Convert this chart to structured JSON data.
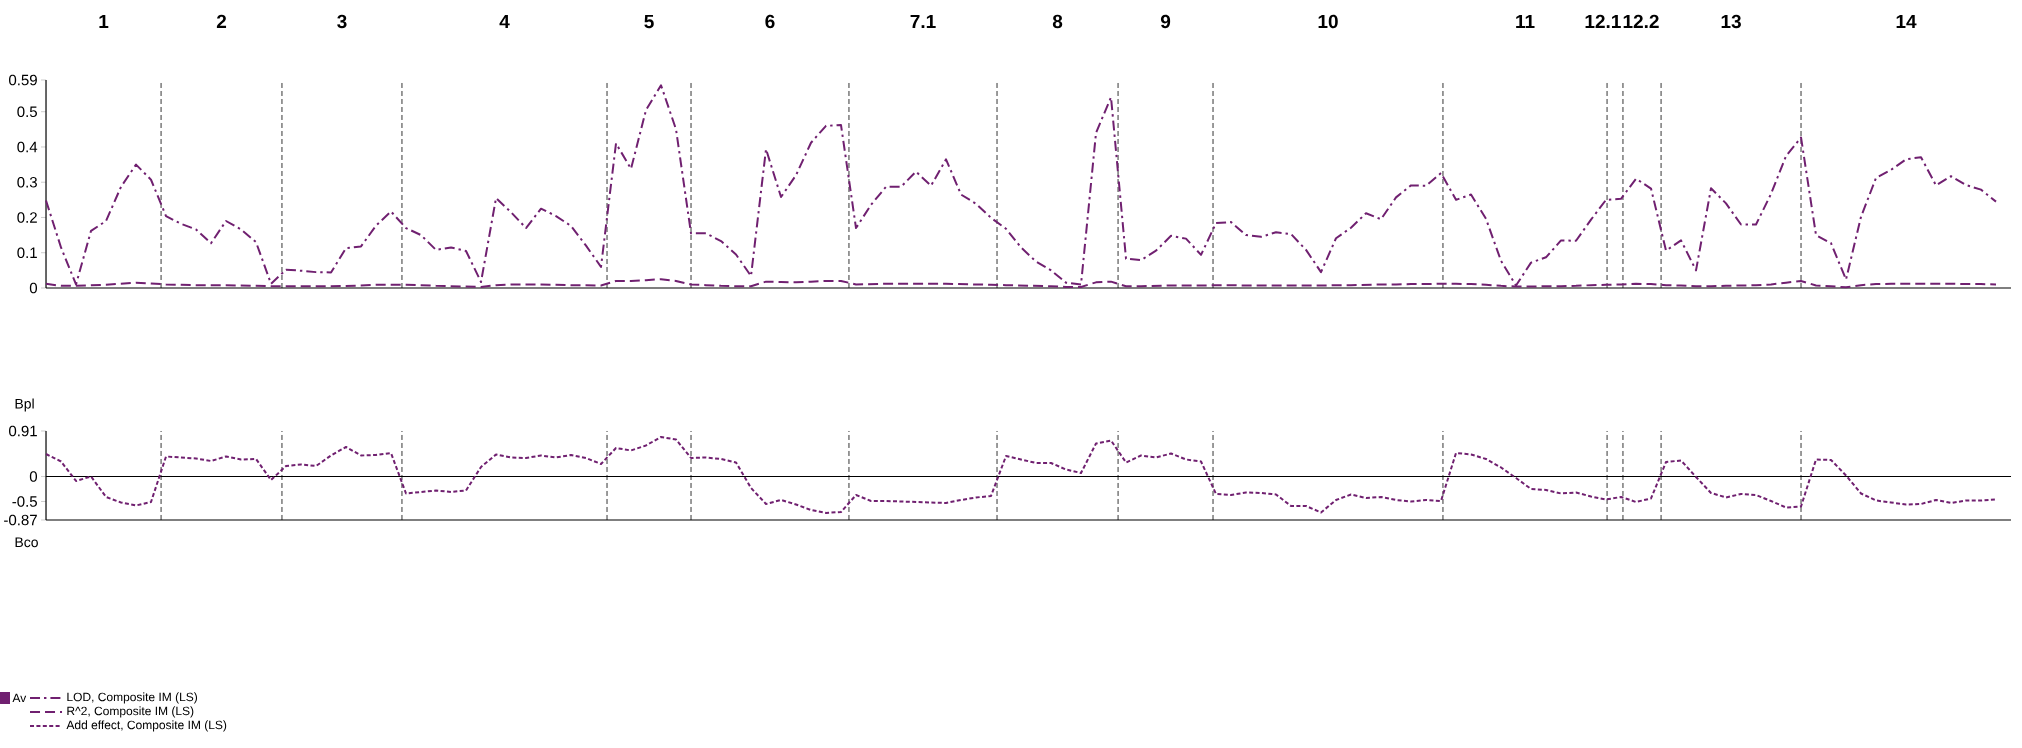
{
  "chart_data": [
    {
      "type": "line",
      "categories": [
        null,
        null,
        null,
        null,
        null,
        null,
        null,
        null,
        null,
        null,
        null,
        null,
        null,
        null,
        null,
        null,
        null,
        null,
        null,
        null,
        null,
        null,
        null,
        null,
        null,
        null,
        null,
        null,
        null,
        null,
        null,
        null,
        null,
        null,
        null,
        null,
        null,
        null,
        null,
        null,
        null,
        null,
        null,
        null,
        null,
        null,
        null,
        null,
        null,
        null,
        null,
        null,
        null,
        null,
        null,
        null,
        null,
        null,
        null,
        null,
        null,
        null,
        null,
        null,
        null,
        null,
        null,
        null,
        null,
        null,
        null,
        null,
        null,
        null,
        null,
        null,
        null,
        null,
        null,
        null,
        null,
        null,
        null,
        null,
        null,
        null,
        null,
        null,
        null,
        null,
        null,
        null,
        null,
        null,
        null,
        null,
        null,
        null,
        null,
        null,
        null,
        null,
        null,
        null,
        null,
        null,
        null,
        null,
        null,
        null,
        null,
        null,
        null,
        null,
        null,
        null,
        null,
        null,
        null,
        null,
        null,
        null,
        null,
        null,
        null,
        null,
        null,
        null,
        null,
        null,
        null
      ],
      "ylim": [
        0,
        0.59
      ],
      "yticks": [
        0,
        0.1,
        0.2,
        0.3,
        0.4,
        0.5,
        0.59
      ],
      "tick_labels": "y",
      "legend": "bottom left",
      "legend_title": "Av",
      "annotations": [
        "1",
        "2",
        "3",
        "4",
        "5",
        "6",
        "7.1",
        "8",
        "9",
        "10",
        "11",
        "12.1",
        "12.2",
        "13",
        "14",
        "Bpl"
      ],
      "series": [
        {
          "name": "LOD, Composite IM (LS)",
          "color": "#702070",
          "line_style": "dashdot",
          "values": [
            0.248,
            0.115,
            0.01,
            0.162,
            0.19,
            0.287,
            0.35,
            0.307,
            0.204,
            0.182,
            0.166,
            0.127,
            0.19,
            0.166,
            0.13,
            0.012,
            0.052,
            0.049,
            0.045,
            0.044,
            0.113,
            0.118,
            0.177,
            0.217,
            0.17,
            0.15,
            0.108,
            0.115,
            0.105,
            0.017,
            0.255,
            0.215,
            0.17,
            0.225,
            0.204,
            0.176,
            0.12,
            0.06,
            0.41,
            0.338,
            0.505,
            0.575,
            0.45,
            0.155,
            0.155,
            0.133,
            0.095,
            0.034,
            0.394,
            0.258,
            0.32,
            0.412,
            0.46,
            0.462,
            0.17,
            0.236,
            0.287,
            0.287,
            0.33,
            0.29,
            0.365,
            0.265,
            0.239,
            0.199,
            0.168,
            0.115,
            0.075,
            0.05,
            0.015,
            0.01,
            0.44,
            0.541,
            0.083,
            0.079,
            0.106,
            0.148,
            0.14,
            0.094,
            0.184,
            0.187,
            0.15,
            0.145,
            0.158,
            0.153,
            0.108,
            0.045,
            0.141,
            0.171,
            0.212,
            0.195,
            0.257,
            0.291,
            0.29,
            0.326,
            0.25,
            0.265,
            0.196,
            0.077,
            0.007,
            0.072,
            0.087,
            0.135,
            0.134,
            0.194,
            0.25,
            0.253,
            0.31,
            0.282,
            0.106,
            0.135,
            0.05,
            0.283,
            0.24,
            0.18,
            0.18,
            0.267,
            0.374,
            0.427,
            0.15,
            0.127,
            0.024,
            0.202,
            0.312,
            0.335,
            0.365,
            0.371,
            0.291,
            0.317,
            0.292,
            0.279,
            0.245
          ]
        },
        {
          "name": "R^2, Composite IM (LS)",
          "color": "#702070",
          "line_style": "dashed",
          "values": [
            0.012,
            0.006,
            0.006,
            0.008,
            0.009,
            0.012,
            0.015,
            0.013,
            0.01,
            0.009,
            0.008,
            0.008,
            0.008,
            0.007,
            0.006,
            0.005,
            0.005,
            0.005,
            0.005,
            0.005,
            0.006,
            0.007,
            0.009,
            0.009,
            0.009,
            0.008,
            0.006,
            0.005,
            0.004,
            0.003,
            0.008,
            0.01,
            0.01,
            0.01,
            0.009,
            0.008,
            0.008,
            0.007,
            0.02,
            0.02,
            0.022,
            0.025,
            0.02,
            0.01,
            0.008,
            0.006,
            0.005,
            0.005,
            0.018,
            0.017,
            0.016,
            0.018,
            0.02,
            0.02,
            0.01,
            0.011,
            0.012,
            0.012,
            0.012,
            0.012,
            0.012,
            0.011,
            0.01,
            0.009,
            0.008,
            0.007,
            0.006,
            0.005,
            0.003,
            0.003,
            0.016,
            0.018,
            0.005,
            0.005,
            0.006,
            0.007,
            0.007,
            0.007,
            0.008,
            0.008,
            0.007,
            0.007,
            0.007,
            0.007,
            0.007,
            0.007,
            0.008,
            0.008,
            0.009,
            0.01,
            0.01,
            0.011,
            0.011,
            0.012,
            0.012,
            0.011,
            0.009,
            0.006,
            0.004,
            0.004,
            0.005,
            0.005,
            0.006,
            0.008,
            0.009,
            0.01,
            0.012,
            0.011,
            0.008,
            0.007,
            0.005,
            0.005,
            0.006,
            0.007,
            0.008,
            0.01,
            0.015,
            0.02,
            0.007,
            0.005,
            0.002,
            0.008,
            0.011,
            0.012,
            0.012,
            0.012,
            0.012,
            0.012,
            0.011,
            0.011,
            0.01
          ]
        }
      ]
    },
    {
      "type": "line",
      "categories": [
        null,
        null,
        null,
        null,
        null,
        null,
        null,
        null,
        null,
        null,
        null,
        null,
        null,
        null,
        null,
        null,
        null,
        null,
        null,
        null,
        null,
        null,
        null,
        null,
        null,
        null,
        null,
        null,
        null,
        null,
        null,
        null,
        null,
        null,
        null,
        null,
        null,
        null,
        null,
        null,
        null,
        null,
        null,
        null,
        null,
        null,
        null,
        null,
        null,
        null,
        null,
        null,
        null,
        null,
        null,
        null,
        null,
        null,
        null,
        null,
        null,
        null,
        null,
        null,
        null,
        null,
        null,
        null,
        null,
        null,
        null,
        null,
        null,
        null,
        null,
        null,
        null,
        null,
        null,
        null,
        null,
        null,
        null,
        null,
        null,
        null,
        null,
        null,
        null,
        null,
        null,
        null,
        null,
        null,
        null,
        null,
        null,
        null,
        null,
        null,
        null,
        null,
        null,
        null,
        null,
        null,
        null,
        null,
        null,
        null,
        null,
        null,
        null,
        null,
        null,
        null,
        null,
        null,
        null,
        null,
        null,
        null,
        null,
        null,
        null,
        null,
        null,
        null,
        null,
        null,
        null
      ],
      "ylim": [
        -0.87,
        0.91
      ],
      "yticks": [
        -0.87,
        -0.5,
        0,
        0.91
      ],
      "tick_labels": "y",
      "legend": "bottom left",
      "annotations": [
        "Bco"
      ],
      "ref_lines": [
        {
          "axis": "y",
          "value": 0
        }
      ],
      "series": [
        {
          "name": "Add effect, Composite IM (LS)",
          "color": "#702070",
          "line_style": "dotted",
          "values": [
            0.45,
            0.3,
            -0.09,
            0,
            -0.41,
            -0.52,
            -0.58,
            -0.51,
            0.4,
            0.38,
            0.36,
            0.31,
            0.4,
            0.34,
            0.35,
            -0.07,
            0.21,
            0.24,
            0.21,
            0.42,
            0.59,
            0.42,
            0.43,
            0.47,
            -0.34,
            -0.31,
            -0.28,
            -0.31,
            -0.28,
            0.19,
            0.44,
            0.38,
            0.37,
            0.42,
            0.38,
            0.43,
            0.37,
            0.25,
            0.57,
            0.52,
            0.62,
            0.79,
            0.74,
            0.37,
            0.38,
            0.35,
            0.28,
            -0.23,
            -0.55,
            -0.47,
            -0.56,
            -0.67,
            -0.73,
            -0.71,
            -0.37,
            -0.49,
            -0.49,
            -0.5,
            -0.51,
            -0.52,
            -0.53,
            -0.47,
            -0.42,
            -0.39,
            0.41,
            0.34,
            0.27,
            0.27,
            0.14,
            0.07,
            0.66,
            0.72,
            0.28,
            0.42,
            0.38,
            0.46,
            0.34,
            0.3,
            -0.35,
            -0.37,
            -0.32,
            -0.33,
            -0.36,
            -0.59,
            -0.59,
            -0.72,
            -0.47,
            -0.36,
            -0.43,
            -0.41,
            -0.47,
            -0.5,
            -0.47,
            -0.49,
            0.47,
            0.44,
            0.35,
            0.18,
            -0.03,
            -0.25,
            -0.27,
            -0.34,
            -0.32,
            -0.4,
            -0.46,
            -0.41,
            -0.51,
            -0.44,
            0.29,
            0.32,
            -0.01,
            -0.33,
            -0.42,
            -0.35,
            -0.37,
            -0.49,
            -0.62,
            -0.6,
            0.34,
            0.33,
            0.02,
            -0.34,
            -0.48,
            -0.52,
            -0.56,
            -0.55,
            -0.47,
            -0.53,
            -0.48,
            -0.48,
            -0.46
          ]
        }
      ]
    }
  ]
}
